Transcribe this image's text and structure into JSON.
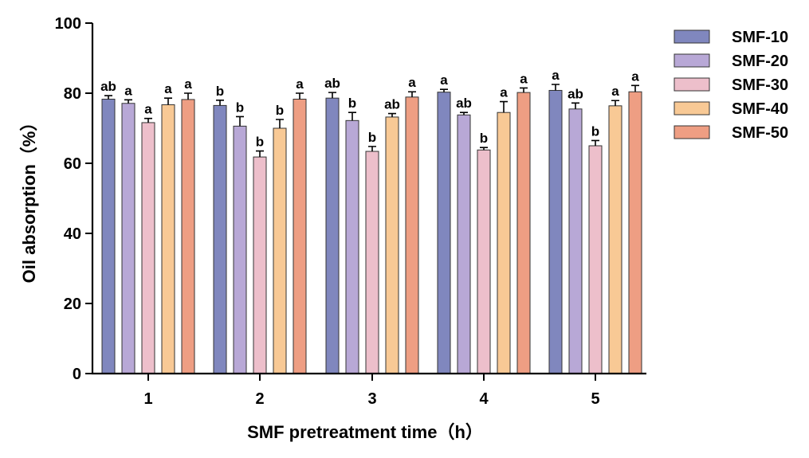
{
  "chart_data": {
    "type": "bar",
    "title": "",
    "xlabel": "SMF pretreatment time（h）",
    "ylabel": "Oil absorption（%）",
    "categories": [
      "1",
      "2",
      "3",
      "4",
      "5"
    ],
    "ylim": [
      0,
      100
    ],
    "yticks": [
      "0",
      "20",
      "40",
      "60",
      "80",
      "100"
    ],
    "legend_position": "top-right",
    "series": [
      {
        "name": "SMF-10",
        "color": "#8087BE",
        "values": [
          78.3,
          76.5,
          78.6,
          80.3,
          80.8
        ],
        "errors": [
          1.0,
          1.5,
          1.6,
          0.8,
          1.7
        ],
        "labels": [
          "ab",
          "b",
          "ab",
          "a",
          "a"
        ]
      },
      {
        "name": "SMF-20",
        "color": "#B8A8D6",
        "values": [
          77.1,
          70.6,
          72.2,
          73.8,
          75.5
        ],
        "errors": [
          1.0,
          2.7,
          2.3,
          0.7,
          1.7
        ],
        "labels": [
          "a",
          "b",
          "b",
          "ab",
          "ab"
        ]
      },
      {
        "name": "SMF-30",
        "color": "#EDBFCB",
        "values": [
          71.6,
          61.8,
          63.4,
          63.8,
          65.0
        ],
        "errors": [
          1.2,
          1.7,
          1.4,
          0.7,
          1.5
        ],
        "labels": [
          "a",
          "b",
          "b",
          "b",
          "b"
        ]
      },
      {
        "name": "SMF-40",
        "color": "#F8C995",
        "values": [
          76.7,
          70.0,
          73.2,
          74.5,
          76.4
        ],
        "errors": [
          1.9,
          2.5,
          1.0,
          3.1,
          1.5
        ],
        "labels": [
          "a",
          "b",
          "ab",
          "a",
          "a"
        ]
      },
      {
        "name": "SMF-50",
        "color": "#EE9E83",
        "values": [
          78.2,
          78.3,
          78.9,
          80.2,
          80.4
        ],
        "errors": [
          1.8,
          1.7,
          1.5,
          1.3,
          1.8
        ],
        "labels": [
          "a",
          "a",
          "a",
          "a",
          "a"
        ]
      }
    ]
  }
}
